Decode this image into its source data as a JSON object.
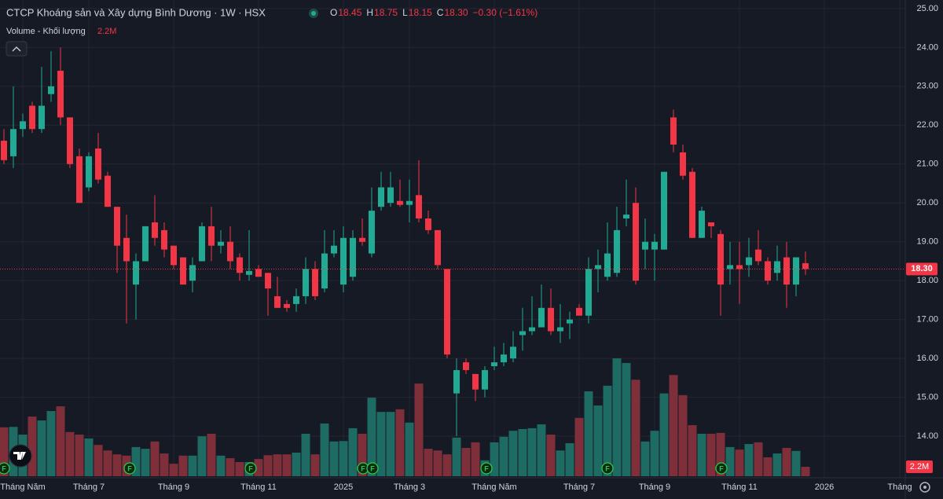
{
  "chart_data": {
    "type": "candlestick",
    "title": "CTCP Khoáng sản và Xây dựng Bình Dương · 1W · HSX",
    "ohlc_legend": [
      {
        "key": "O",
        "value": "18.45"
      },
      {
        "key": "H",
        "value": "18.75"
      },
      {
        "key": "L",
        "value": "18.15"
      },
      {
        "key": "C",
        "value": "18.30"
      }
    ],
    "change": "−0.30 (−1.61%)",
    "volume_title": "Volume - Khối lượng",
    "volume_label": "2.2M",
    "event_label": "F",
    "up_color": "#22ab94",
    "down_color": "#f23645",
    "up_volume_color": "#1d6b63",
    "down_volume_color": "#7f2f39",
    "grid": true,
    "categories": [
      null,
      null,
      "Tháng Năm",
      null,
      null,
      null,
      null,
      null,
      null,
      "Tháng 7",
      null,
      null,
      null,
      null,
      null,
      null,
      null,
      null,
      "Tháng 9",
      null,
      null,
      null,
      null,
      null,
      null,
      null,
      null,
      "Tháng 11",
      null,
      null,
      null,
      null,
      null,
      null,
      null,
      null,
      "2025",
      null,
      null,
      null,
      null,
      null,
      null,
      "Tháng 3",
      null,
      null,
      null,
      null,
      null,
      null,
      null,
      null,
      "Tháng Năm",
      null,
      null,
      null,
      null,
      null,
      null,
      null,
      null,
      "Tháng 7",
      null,
      null,
      null,
      null,
      null,
      null,
      null,
      "Tháng 9",
      null,
      null,
      null,
      null,
      null,
      null,
      null,
      null,
      "Tháng 11",
      null,
      null,
      null,
      null,
      null,
      null,
      null,
      null,
      "2026",
      null,
      null,
      null,
      null,
      null,
      null,
      null,
      "Tháng"
    ],
    "open": [
      21.6,
      21.2,
      21.9,
      22.5,
      21.9,
      22.8,
      23.4,
      22.2,
      21.2,
      20.4,
      21.4,
      20.7,
      19.9,
      19.1,
      17.9,
      18.5,
      19.5,
      19.3,
      18.9,
      18.6,
      18.0,
      18.5,
      19.4,
      18.9,
      19.0,
      18.6,
      18.15,
      18.3,
      18.2,
      17.6,
      17.4,
      17.4,
      17.6,
      18.3,
      17.8,
      18.7,
      17.9,
      18.1,
      19.1,
      18.7,
      19.9,
      20.0,
      20.05,
      19.95,
      20.2,
      19.6,
      19.3,
      18.3,
      15.1,
      15.9,
      15.6,
      15.2,
      15.8,
      15.9,
      16.0,
      16.6,
      16.7,
      16.8,
      17.3,
      16.7,
      16.9,
      17.3,
      17.1,
      18.3,
      18.1,
      18.2,
      19.6,
      20.0,
      18.8,
      18.8,
      18.8,
      22.2,
      21.3,
      20.8,
      19.1,
      19.5,
      19.2,
      18.3,
      18.4,
      18.4,
      18.8,
      18.5,
      18.2,
      18.6,
      17.9,
      18.45,
      null,
      null,
      null,
      null,
      null,
      null,
      null,
      null,
      null,
      null
    ],
    "high": [
      21.9,
      23.0,
      22.3,
      22.6,
      23.5,
      23.9,
      24.0,
      22.2,
      21.4,
      21.3,
      21.8,
      20.8,
      19.9,
      19.7,
      18.7,
      19.4,
      20.2,
      19.5,
      18.9,
      18.6,
      18.6,
      19.5,
      19.9,
      19.3,
      19.4,
      18.7,
      19.3,
      18.4,
      18.2,
      18.1,
      17.5,
      17.8,
      18.6,
      18.5,
      19.3,
      19.3,
      19.4,
      19.3,
      19.6,
      20.4,
      20.8,
      20.8,
      20.6,
      20.6,
      21.1,
      19.8,
      19.3,
      18.3,
      16.0,
      16.0,
      15.6,
      15.8,
      16.3,
      16.4,
      16.7,
      17.3,
      17.6,
      17.9,
      17.8,
      17.4,
      17.2,
      17.4,
      18.6,
      18.8,
      19.5,
      19.9,
      20.6,
      20.4,
      19.6,
      19.2,
      20.8,
      22.4,
      21.5,
      20.9,
      19.9,
      19.5,
      19.3,
      19.0,
      19.0,
      19.1,
      19.3,
      18.6,
      18.9,
      19.0,
      18.6,
      18.75,
      null,
      null,
      null,
      null,
      null,
      null,
      null,
      null,
      null,
      null
    ],
    "low": [
      21.0,
      20.9,
      21.7,
      21.8,
      21.8,
      22.6,
      22.0,
      20.9,
      20.0,
      20.3,
      20.5,
      19.9,
      18.2,
      16.9,
      17.0,
      18.5,
      18.9,
      18.6,
      18.3,
      17.9,
      17.7,
      18.5,
      18.5,
      18.7,
      18.3,
      18.0,
      18.0,
      18.1,
      17.1,
      17.3,
      17.2,
      17.2,
      17.4,
      17.5,
      17.7,
      18.6,
      17.7,
      18.0,
      18.9,
      18.6,
      19.8,
      19.9,
      19.9,
      19.5,
      19.5,
      19.2,
      18.3,
      16.0,
      14.0,
      15.6,
      14.9,
      15.0,
      15.7,
      15.8,
      15.9,
      16.2,
      16.6,
      16.8,
      16.6,
      16.4,
      16.5,
      17.1,
      16.9,
      17.7,
      18.0,
      18.1,
      19.4,
      17.9,
      18.3,
      18.0,
      18.8,
      21.3,
      20.6,
      19.1,
      19.1,
      19.1,
      17.1,
      17.9,
      17.4,
      18.1,
      18.4,
      17.9,
      18.0,
      17.3,
      17.6,
      18.15,
      null,
      null,
      null,
      null,
      null,
      null,
      null,
      null,
      null,
      null
    ],
    "close": [
      21.1,
      21.9,
      22.1,
      21.9,
      22.5,
      23.0,
      22.2,
      21.0,
      20.0,
      21.2,
      20.6,
      19.9,
      18.9,
      18.5,
      18.5,
      19.4,
      19.1,
      18.8,
      18.4,
      17.9,
      18.4,
      19.4,
      18.9,
      19.0,
      18.5,
      18.2,
      18.25,
      18.1,
      17.8,
      17.3,
      17.3,
      17.6,
      18.3,
      17.6,
      18.7,
      18.9,
      19.1,
      19.1,
      19.0,
      19.8,
      20.4,
      20.4,
      19.95,
      20.05,
      19.6,
      19.3,
      18.4,
      16.1,
      15.7,
      15.7,
      15.2,
      15.7,
      15.9,
      16.1,
      16.3,
      16.7,
      16.8,
      17.3,
      16.7,
      16.8,
      17.0,
      17.1,
      18.3,
      18.4,
      18.7,
      19.3,
      19.7,
      18.0,
      19.0,
      19.0,
      20.8,
      21.5,
      20.7,
      19.1,
      19.8,
      19.4,
      17.9,
      18.4,
      18.3,
      18.6,
      18.5,
      18.0,
      18.5,
      17.9,
      18.6,
      18.3,
      null,
      null,
      null,
      null,
      null,
      null,
      null,
      null,
      null,
      null
    ],
    "volume": [
      11.4,
      11.5,
      9.7,
      13.9,
      13.0,
      15.2,
      16.3,
      10.3,
      9.7,
      8.8,
      7.3,
      6.0,
      5.1,
      4.8,
      6.8,
      6.4,
      8.1,
      5.3,
      2.9,
      4.8,
      4.8,
      9.3,
      9.9,
      4.8,
      4.2,
      3.3,
      3.3,
      4.0,
      4.9,
      5.1,
      5.1,
      5.5,
      9.9,
      5.1,
      12.3,
      8.1,
      8.2,
      11.2,
      9.9,
      18.3,
      15.0,
      15.0,
      15.6,
      12.5,
      21.6,
      6.4,
      6.0,
      5.1,
      9.0,
      6.6,
      7.9,
      3.7,
      7.9,
      9.2,
      10.6,
      11.0,
      11.2,
      12.1,
      9.7,
      6.0,
      7.7,
      13.6,
      19.8,
      16.5,
      21.1,
      27.5,
      26.4,
      22.5,
      8.1,
      10.6,
      19.3,
      23.6,
      18.9,
      11.9,
      9.9,
      9.9,
      10.1,
      6.8,
      6.2,
      7.5,
      7.9,
      4.4,
      5.3,
      6.6,
      5.9,
      2.2,
      null,
      null,
      null,
      null,
      null,
      null,
      null,
      null,
      null,
      null
    ],
    "last_price": {
      "value": 18.3,
      "label": "18.30"
    },
    "ylim": [
      12.97,
      25.22
    ],
    "vlim": [
      0,
      35
    ],
    "yticks": [
      {
        "value": 14,
        "label": "14.00"
      },
      {
        "value": 15,
        "label": "15.00"
      },
      {
        "value": 16,
        "label": "16.00"
      },
      {
        "value": 17,
        "label": "17.00"
      },
      {
        "value": 18,
        "label": "18.00"
      },
      {
        "value": 19,
        "label": "19.00"
      },
      {
        "value": 20,
        "label": "20.00"
      },
      {
        "value": 21,
        "label": "21.00"
      },
      {
        "value": 22,
        "label": "22.00"
      },
      {
        "value": 23,
        "label": "23.00"
      },
      {
        "value": 24,
        "label": "24.00"
      },
      {
        "value": 25,
        "label": "25.00"
      }
    ]
  }
}
